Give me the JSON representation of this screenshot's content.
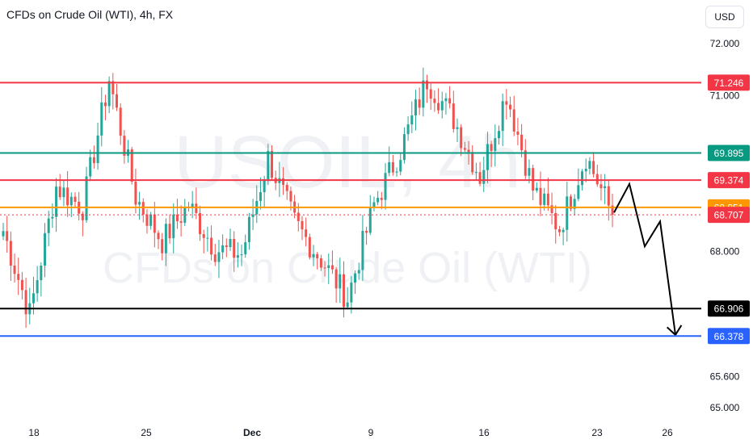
{
  "header": {
    "title": "CFDs on Crude Oil (WTI), 4h, FX",
    "currency": "USD"
  },
  "watermark": {
    "symbol": "USOIL, 4h",
    "description": "CFDs on Crude Oil (WTI)"
  },
  "colors": {
    "up": "#26a69a",
    "down": "#ef5350",
    "resistance": "#f23645",
    "teal_level": "#089981",
    "orange_level": "#ff9800",
    "support": "#000000",
    "blue_level": "#2962ff",
    "axis_text": "#131722"
  },
  "chart_data": {
    "type": "candlestick",
    "title": "CFDs on Crude Oil (WTI), 4h, FX",
    "xlabel": "",
    "ylabel": "USD",
    "y_range": [
      64.8,
      72.4
    ],
    "y_ticks": [
      72.0,
      71.0,
      68.0,
      65.6,
      65.0
    ],
    "x_ticks": [
      "18",
      "25",
      "Dec",
      "9",
      "16",
      "23",
      "26"
    ],
    "grid": false,
    "horizontal_levels": [
      {
        "value": 71.246,
        "label": "71.246",
        "color": "#f23645"
      },
      {
        "value": 69.895,
        "label": "69.895",
        "color": "#089981"
      },
      {
        "value": 69.374,
        "label": "69.374",
        "color": "#f23645"
      },
      {
        "value": 68.851,
        "label": "68.851",
        "color": "#ff9800"
      },
      {
        "value": 68.707,
        "label": "68.707",
        "color": "#f23645",
        "style": "dotted"
      },
      {
        "value": 66.906,
        "label": "66.906",
        "color": "#000000"
      },
      {
        "value": 66.378,
        "label": "66.378",
        "color": "#2962ff"
      }
    ],
    "projection": {
      "description": "projected zig-zag path",
      "points": [
        {
          "bar": 0,
          "price": 68.75
        },
        {
          "bar": 1,
          "price": 69.3
        },
        {
          "bar": 2,
          "price": 68.1
        },
        {
          "bar": 3,
          "price": 68.58
        },
        {
          "bar": 4,
          "price": 66.4
        }
      ]
    },
    "segments": [
      {
        "label": "start",
        "close": 68.4
      },
      {
        "label": "low_18",
        "close": 66.8
      },
      {
        "label": "rise_21",
        "close": 69.25
      },
      {
        "label": "mid_22",
        "close": 68.85
      },
      {
        "label": "peak_25",
        "close": 71.32
      },
      {
        "label": "drop_26",
        "close": 69.05
      },
      {
        "label": "low_27",
        "close": 68.2
      },
      {
        "label": "bounce_28",
        "close": 68.9
      },
      {
        "label": "low_29",
        "close": 68.05
      },
      {
        "label": "low_dec2",
        "close": 67.95
      },
      {
        "label": "high_dec4",
        "close": 69.8
      },
      {
        "label": "drop_dec5",
        "close": 68.55
      },
      {
        "label": "low_dec6",
        "close": 67.85
      },
      {
        "label": "low_dec9",
        "close": 67.1
      },
      {
        "label": "rise_dec11",
        "close": 68.9
      },
      {
        "label": "rise_dec12",
        "close": 69.95
      },
      {
        "label": "peak_dec16",
        "close": 71.3
      },
      {
        "label": "mid_dec17",
        "close": 70.55
      },
      {
        "label": "low_dec18",
        "close": 69.45
      },
      {
        "label": "high_dec19",
        "close": 71.05
      },
      {
        "label": "drop_dec20",
        "close": 69.2
      },
      {
        "label": "low_dec22",
        "close": 68.45
      },
      {
        "label": "bounce_dec23",
        "close": 69.85
      },
      {
        "label": "last",
        "close": 68.707
      }
    ]
  }
}
